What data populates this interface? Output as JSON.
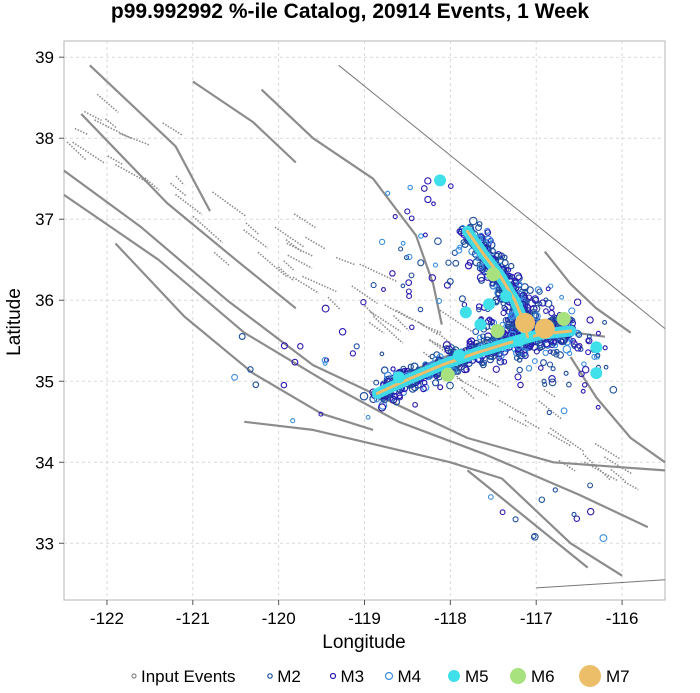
{
  "chart_data": {
    "type": "scatter",
    "title": "p99.992992 %-ile Catalog, 20914 Events, 1 Week",
    "xlabel": "Longitude",
    "ylabel": "Latitude",
    "xlim": [
      -122.5,
      -115.5
    ],
    "ylim": [
      32.3,
      39.2
    ],
    "xticks": [
      -122,
      -121,
      -120,
      -119,
      -118,
      -117,
      -116
    ],
    "yticks": [
      33,
      34,
      35,
      36,
      37,
      38,
      39
    ],
    "grid": true,
    "legend_position": "bottom",
    "legend": [
      {
        "label": "Input Events",
        "color": "#888888",
        "style": "hollow"
      },
      {
        "label": "M2",
        "color": "#1f4e9c",
        "style": "hollow"
      },
      {
        "label": "M3",
        "color": "#2a1bb0",
        "style": "hollow"
      },
      {
        "label": "M4",
        "color": "#3c8ee0",
        "style": "hollow"
      },
      {
        "label": "M5",
        "color": "#3fe0ea",
        "style": "filled"
      },
      {
        "label": "M6",
        "color": "#a8e27e",
        "style": "filled"
      },
      {
        "label": "M7",
        "color": "#edbe6a",
        "style": "filled"
      }
    ],
    "main_trend": [
      [
        -118.85,
        34.85
      ],
      [
        -118.5,
        35.02
      ],
      [
        -118.1,
        35.2
      ],
      [
        -117.7,
        35.35
      ],
      [
        -117.3,
        35.48
      ],
      [
        -116.95,
        35.58
      ],
      [
        -116.6,
        35.62
      ]
    ],
    "branch_trend": [
      [
        -117.8,
        36.85
      ],
      [
        -117.6,
        36.55
      ],
      [
        -117.42,
        36.3
      ],
      [
        -117.25,
        36.0
      ],
      [
        -117.15,
        35.75
      ],
      [
        -117.1,
        35.55
      ]
    ],
    "m7_events": [
      [
        -117.13,
        35.72
      ],
      [
        -116.9,
        35.65
      ]
    ],
    "m6_events": [
      [
        -117.5,
        36.32
      ],
      [
        -117.45,
        35.62
      ],
      [
        -116.68,
        35.77
      ],
      [
        -118.03,
        35.08
      ]
    ],
    "m5_events": [
      [
        -118.12,
        37.48
      ],
      [
        -117.82,
        35.85
      ],
      [
        -117.55,
        35.95
      ],
      [
        -117.35,
        36.05
      ],
      [
        -116.3,
        35.42
      ],
      [
        -116.3,
        35.1
      ],
      [
        -117.9,
        35.32
      ],
      [
        -118.6,
        35.05
      ],
      [
        -117.2,
        35.5
      ],
      [
        -117.65,
        35.7
      ]
    ],
    "colors": {
      "fault": "#8c8c8c",
      "grid": "#d9d9d9",
      "trend_glow": "#3fe0ea",
      "trend_core": "#edbe6a"
    }
  }
}
